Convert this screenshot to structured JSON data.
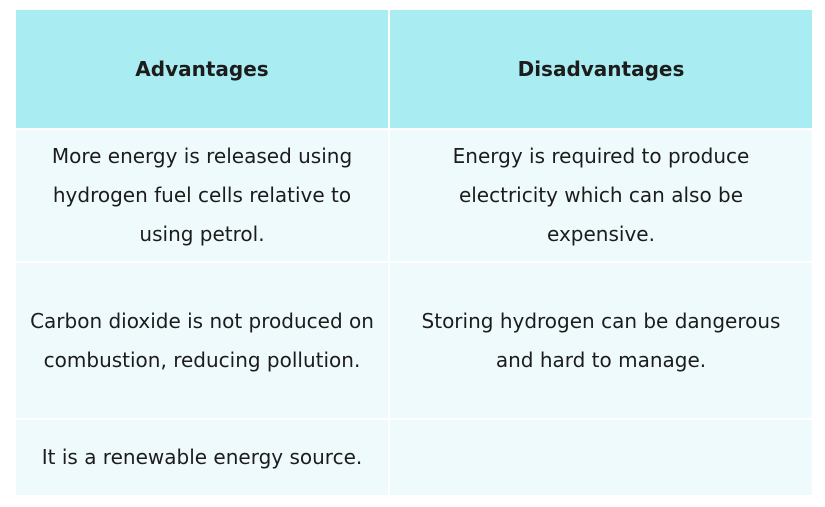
{
  "table": {
    "header": [
      "Advantages",
      "Disadvantages"
    ],
    "rows": [
      [
        "More energy is released using hydrogen fuel cells relative to using petrol.",
        "Energy is required to produce electricity which can also be expensive."
      ],
      [
        "Carbon dioxide is not produced on combustion, reducing pollution.",
        "Storing hydrogen can be dangerous and hard to manage."
      ],
      [
        "It is a renewable energy source."
      ]
    ]
  }
}
